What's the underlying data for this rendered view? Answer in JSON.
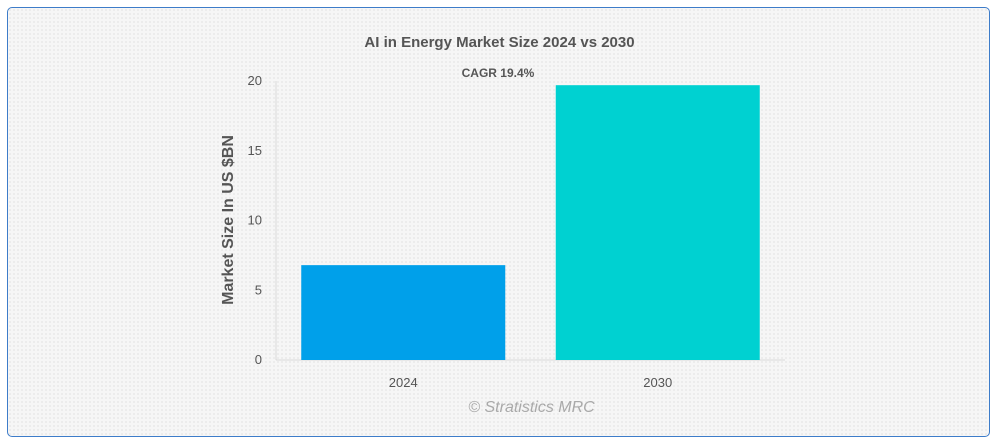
{
  "chart_data": {
    "type": "bar",
    "title": "AI in Energy Market Size 2024 vs 2030",
    "xlabel": "",
    "ylabel": "Market Size In US $BN",
    "categories": [
      "2024",
      "2030"
    ],
    "values": [
      6.8,
      19.7
    ],
    "colors": [
      "#00a0ea",
      "#00d1d1"
    ],
    "ylim": [
      0,
      20
    ],
    "yticks": [
      "0",
      "5",
      "10",
      "15",
      "20"
    ],
    "grid": false,
    "annotation": "CAGR 19.4%"
  },
  "watermark": "© Stratistics MRC"
}
